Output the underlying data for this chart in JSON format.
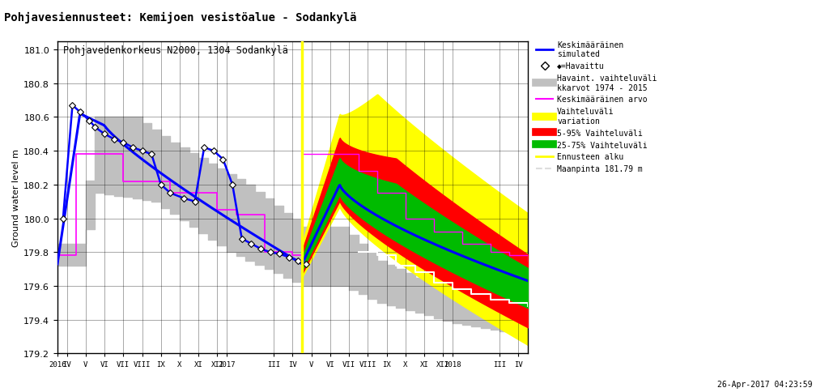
{
  "title_main": "Pohjavesiennusteet: Kemijoen vesistöalue - Sodankylä",
  "title_sub": "Pohjavedenkorkeus N2000, 1304 Sodankylä",
  "ylabel": "Ground water level m",
  "ylim": [
    179.2,
    181.05
  ],
  "yticks": [
    179.2,
    179.4,
    179.6,
    179.8,
    180.0,
    180.2,
    180.4,
    180.6,
    180.8,
    181.0
  ],
  "maanpinta": 181.79,
  "timestamp": "26-Apr-2017 04:23:59",
  "forecast_start": 16,
  "xmin": 3,
  "xmax": 28
}
